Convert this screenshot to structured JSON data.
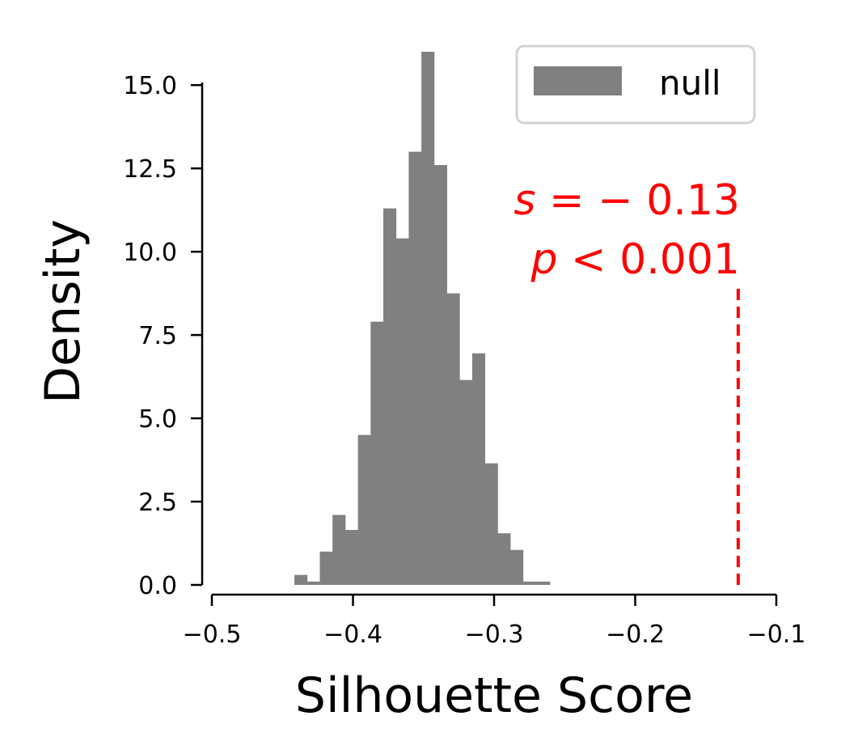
{
  "chart_data": {
    "type": "bar",
    "subtype": "histogram",
    "xlabel": "Silhouette Score",
    "ylabel": "Density",
    "xlim": [
      -0.5,
      -0.1
    ],
    "ylim": [
      0,
      16
    ],
    "xticks": [
      -0.5,
      -0.4,
      -0.3,
      -0.2,
      -0.1
    ],
    "xtick_labels": [
      "−0.5",
      "−0.4",
      "−0.3",
      "−0.2",
      "−0.1"
    ],
    "yticks": [
      0,
      2.5,
      5,
      7.5,
      10,
      12.5,
      15
    ],
    "ytick_labels": [
      "0.0",
      "2.5",
      "5.0",
      "7.5",
      "10.0",
      "12.5",
      "15.0"
    ],
    "grid": false,
    "legend_position": "top-right",
    "series": [
      {
        "name": "null",
        "color": "#808080",
        "bin_edges": [
          -0.4415,
          -0.4325,
          -0.4235,
          -0.4145,
          -0.4055,
          -0.3965,
          -0.3875,
          -0.3785,
          -0.3695,
          -0.3605,
          -0.3515,
          -0.3425,
          -0.3335,
          -0.3245,
          -0.3155,
          -0.3065,
          -0.2975,
          -0.2885,
          -0.2795,
          -0.2705,
          -0.2605
        ],
        "values": [
          0.3,
          0.1,
          1.0,
          2.1,
          1.65,
          4.5,
          7.9,
          11.3,
          10.4,
          13.0,
          16.0,
          12.6,
          8.75,
          6.15,
          6.95,
          3.65,
          1.55,
          1.05,
          0.1,
          0.1
        ]
      }
    ],
    "reference_line": {
      "x": -0.127,
      "y_top": 9.0,
      "color": "#ff0000",
      "style": "dashed"
    },
    "annotation": {
      "line1_var": "s",
      "line1_rest": " = − 0.13",
      "line2_var": "p",
      "line2_rest": " < 0.001",
      "color": "#ff0000"
    }
  }
}
